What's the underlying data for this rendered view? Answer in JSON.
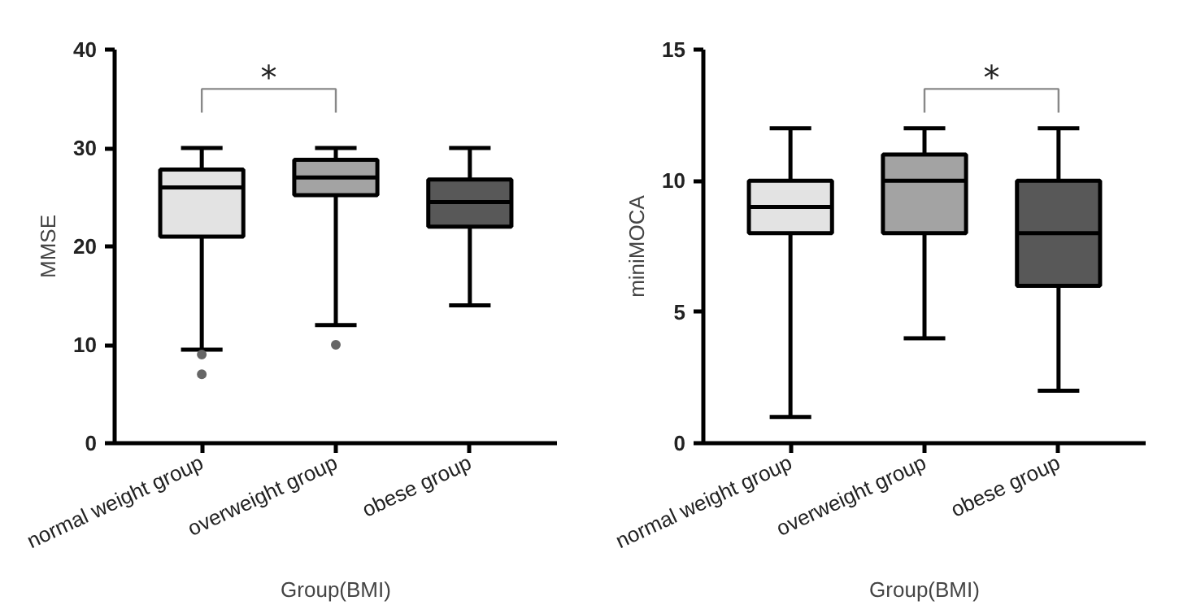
{
  "chart_data": [
    {
      "type": "box",
      "ylabel": "MMSE",
      "xlabel": "Group(BMI)",
      "categories": [
        "normal weight group",
        "overweight group",
        "obese group"
      ],
      "ylim": [
        0,
        40
      ],
      "yticks": [
        0,
        10,
        20,
        30,
        40
      ],
      "grid": false,
      "colors": [
        "#e3e3e3",
        "#a3a3a3",
        "#585858"
      ],
      "boxes": [
        {
          "low": 9.5,
          "q1": 21,
          "median": 26,
          "q3": 27.8,
          "high": 30,
          "outliers": [
            9,
            7
          ]
        },
        {
          "low": 12,
          "q1": 25.2,
          "median": 27,
          "q3": 28.8,
          "high": 30,
          "outliers": [
            10
          ]
        },
        {
          "low": 14,
          "q1": 22,
          "median": 24.5,
          "q3": 26.8,
          "high": 30
        }
      ],
      "annotations": [
        "*"
      ]
    },
    {
      "type": "box",
      "ylabel": "miniMOCA",
      "xlabel": "Group(BMI)",
      "categories": [
        "normal weight group",
        "overweight group",
        "obese group"
      ],
      "ylim": [
        0,
        15
      ],
      "yticks": [
        0,
        5,
        10,
        15
      ],
      "grid": false,
      "colors": [
        "#e3e3e3",
        "#a3a3a3",
        "#585858"
      ],
      "boxes": [
        {
          "low": 1,
          "q1": 8,
          "median": 9,
          "q3": 10,
          "high": 12
        },
        {
          "low": 4,
          "q1": 8,
          "median": 10,
          "q3": 11,
          "high": 12
        },
        {
          "low": 2,
          "q1": 6,
          "median": 8,
          "q3": 10,
          "high": 12
        }
      ],
      "annotations": [
        "*"
      ]
    }
  ]
}
